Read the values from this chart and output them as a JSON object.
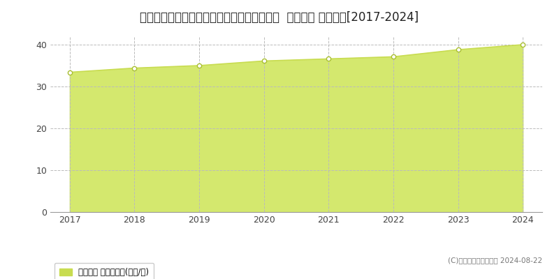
{
  "title": "兵庫県神戸市垂水区舞多聞西７丁目５番２０  地価公示 地価推移[2017-2024]",
  "years": [
    2017,
    2018,
    2019,
    2020,
    2021,
    2022,
    2023,
    2024
  ],
  "values": [
    33.4,
    34.4,
    35.0,
    36.1,
    36.6,
    37.1,
    38.8,
    40.0
  ],
  "line_color": "#c8dc50",
  "fill_color": "#d4e86e",
  "marker_color": "#ffffff",
  "marker_edge_color": "#a8be30",
  "grid_color": "#bbbbbb",
  "background_color": "#ffffff",
  "ylim": [
    0,
    42
  ],
  "yticks": [
    0,
    10,
    20,
    30,
    40
  ],
  "legend_label": "地価公示 平均坪単価(万円/坪)",
  "legend_marker_color": "#c8dc50",
  "copyright_text": "(C)土地価格ドットコム 2024-08-22",
  "title_fontsize": 12,
  "axis_fontsize": 9,
  "legend_fontsize": 8.5,
  "copyright_fontsize": 7.5
}
